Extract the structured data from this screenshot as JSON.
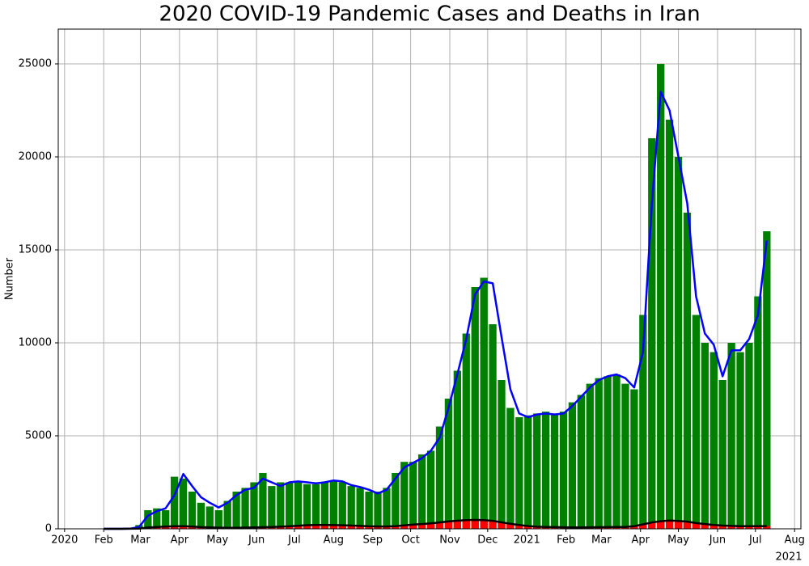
{
  "chart_data": {
    "type": "bar_line",
    "title": "2020 COVID-19 Pandemic Cases and Deaths in Iran",
    "ylabel": "Number",
    "x": [
      "2020-02-01",
      "2020-02-08",
      "2020-02-15",
      "2020-02-22",
      "2020-02-29",
      "2020-03-07",
      "2020-03-14",
      "2020-03-21",
      "2020-03-28",
      "2020-04-04",
      "2020-04-11",
      "2020-04-18",
      "2020-04-25",
      "2020-05-02",
      "2020-05-09",
      "2020-05-16",
      "2020-05-23",
      "2020-05-30",
      "2020-06-06",
      "2020-06-13",
      "2020-06-20",
      "2020-06-27",
      "2020-07-04",
      "2020-07-11",
      "2020-07-18",
      "2020-07-25",
      "2020-08-01",
      "2020-08-08",
      "2020-08-15",
      "2020-08-22",
      "2020-08-29",
      "2020-09-05",
      "2020-09-12",
      "2020-09-19",
      "2020-09-26",
      "2020-10-03",
      "2020-10-10",
      "2020-10-17",
      "2020-10-24",
      "2020-10-31",
      "2020-11-07",
      "2020-11-14",
      "2020-11-21",
      "2020-11-28",
      "2020-12-05",
      "2020-12-12",
      "2020-12-19",
      "2020-12-26",
      "2021-01-02",
      "2021-01-09",
      "2021-01-16",
      "2021-01-23",
      "2021-01-30",
      "2021-02-06",
      "2021-02-13",
      "2021-02-20",
      "2021-02-27",
      "2021-03-06",
      "2021-03-13",
      "2021-03-20",
      "2021-03-27",
      "2021-04-03",
      "2021-04-10",
      "2021-04-17",
      "2021-04-24",
      "2021-05-01",
      "2021-05-08",
      "2021-05-15",
      "2021-05-22",
      "2021-05-29",
      "2021-06-05",
      "2021-06-12",
      "2021-06-19",
      "2021-06-26",
      "2021-07-03",
      "2021-07-10"
    ],
    "series": [
      {
        "style": "bar",
        "color": "#008000",
        "values": [
          0,
          0,
          0,
          30,
          200,
          1000,
          1100,
          1000,
          2800,
          2700,
          2000,
          1400,
          1200,
          1000,
          1500,
          2000,
          2200,
          2500,
          3000,
          2300,
          2500,
          2500,
          2500,
          2400,
          2400,
          2500,
          2600,
          2500,
          2300,
          2200,
          2000,
          2000,
          2200,
          3000,
          3600,
          3600,
          4000,
          4200,
          5500,
          7000,
          8500,
          10500,
          13000,
          13500,
          11000,
          8000,
          6500,
          6000,
          6100,
          6200,
          6300,
          6200,
          6300,
          6800,
          7200,
          7800,
          8100,
          8200,
          8300,
          7800,
          7500,
          11500,
          21000,
          25000,
          22000,
          20000,
          17000,
          11500,
          10000,
          9500,
          8000,
          10000,
          9500,
          10000,
          12500,
          16000
        ]
      },
      {
        "style": "bar",
        "color": "#ff0000",
        "values": [
          0,
          0,
          0,
          5,
          20,
          80,
          110,
          130,
          140,
          140,
          110,
          80,
          70,
          60,
          55,
          60,
          70,
          80,
          90,
          100,
          120,
          140,
          170,
          200,
          210,
          210,
          200,
          190,
          170,
          150,
          130,
          120,
          130,
          150,
          190,
          230,
          260,
          300,
          350,
          400,
          440,
          470,
          480,
          470,
          420,
          340,
          260,
          200,
          140,
          110,
          100,
          90,
          80,
          80,
          80,
          85,
          90,
          90,
          95,
          100,
          150,
          250,
          350,
          420,
          450,
          420,
          380,
          300,
          250,
          200,
          170,
          150,
          140,
          140,
          140,
          150
        ]
      },
      {
        "style": "line",
        "color": "#0000ff",
        "values": [
          0,
          0,
          0,
          10,
          100,
          700,
          950,
          1100,
          1800,
          2950,
          2300,
          1700,
          1400,
          1150,
          1400,
          1800,
          2100,
          2200,
          2700,
          2500,
          2300,
          2500,
          2550,
          2500,
          2450,
          2500,
          2600,
          2550,
          2350,
          2250,
          2100,
          1900,
          2100,
          2700,
          3300,
          3550,
          3800,
          4200,
          4900,
          6500,
          8300,
          10200,
          12600,
          13300,
          13200,
          10300,
          7500,
          6200,
          6000,
          6150,
          6200,
          6150,
          6200,
          6600,
          7100,
          7600,
          8000,
          8200,
          8300,
          8100,
          7600,
          9500,
          17500,
          23500,
          22500,
          20000,
          17500,
          12500,
          10500,
          9900,
          8200,
          9600,
          9600,
          10200,
          11500,
          15500
        ]
      },
      {
        "style": "line",
        "color": "#000000",
        "values": [
          0,
          0,
          0,
          3,
          15,
          70,
          100,
          120,
          135,
          140,
          120,
          90,
          75,
          62,
          56,
          58,
          65,
          78,
          88,
          98,
          115,
          135,
          165,
          195,
          205,
          208,
          202,
          192,
          175,
          155,
          135,
          125,
          128,
          145,
          185,
          225,
          255,
          295,
          345,
          395,
          435,
          465,
          478,
          470,
          430,
          350,
          270,
          210,
          150,
          115,
          100,
          92,
          82,
          80,
          80,
          84,
          88,
          90,
          94,
          98,
          140,
          240,
          340,
          410,
          445,
          425,
          385,
          310,
          255,
          205,
          175,
          155,
          142,
          140,
          140,
          148
        ]
      }
    ],
    "xlim": [
      "2019-12-27",
      "2021-08-06"
    ],
    "xticks": [
      {
        "value": "2020-01-01",
        "label": "2020"
      },
      {
        "value": "2020-02-01",
        "label": "Feb"
      },
      {
        "value": "2020-03-01",
        "label": "Mar"
      },
      {
        "value": "2020-04-01",
        "label": "Apr"
      },
      {
        "value": "2020-05-01",
        "label": "May"
      },
      {
        "value": "2020-06-01",
        "label": "Jun"
      },
      {
        "value": "2020-07-01",
        "label": "Jul"
      },
      {
        "value": "2020-08-01",
        "label": "Aug"
      },
      {
        "value": "2020-09-01",
        "label": "Sep"
      },
      {
        "value": "2020-10-01",
        "label": "Oct"
      },
      {
        "value": "2020-11-01",
        "label": "Nov"
      },
      {
        "value": "2020-12-01",
        "label": "Dec"
      },
      {
        "value": "2021-01-01",
        "label": "2021"
      },
      {
        "value": "2021-02-01",
        "label": "Feb"
      },
      {
        "value": "2021-03-01",
        "label": "Mar"
      },
      {
        "value": "2021-04-01",
        "label": "Apr"
      },
      {
        "value": "2021-05-01",
        "label": "May"
      },
      {
        "value": "2021-06-01",
        "label": "Jun"
      },
      {
        "value": "2021-07-01",
        "label": "Jul"
      },
      {
        "value": "2021-08-01",
        "label": "Aug"
      }
    ],
    "x_offset_label": "2021",
    "ylim": [
      0,
      26870
    ],
    "yticks": [
      0,
      5000,
      10000,
      15000,
      20000,
      25000
    ],
    "grid": true
  }
}
